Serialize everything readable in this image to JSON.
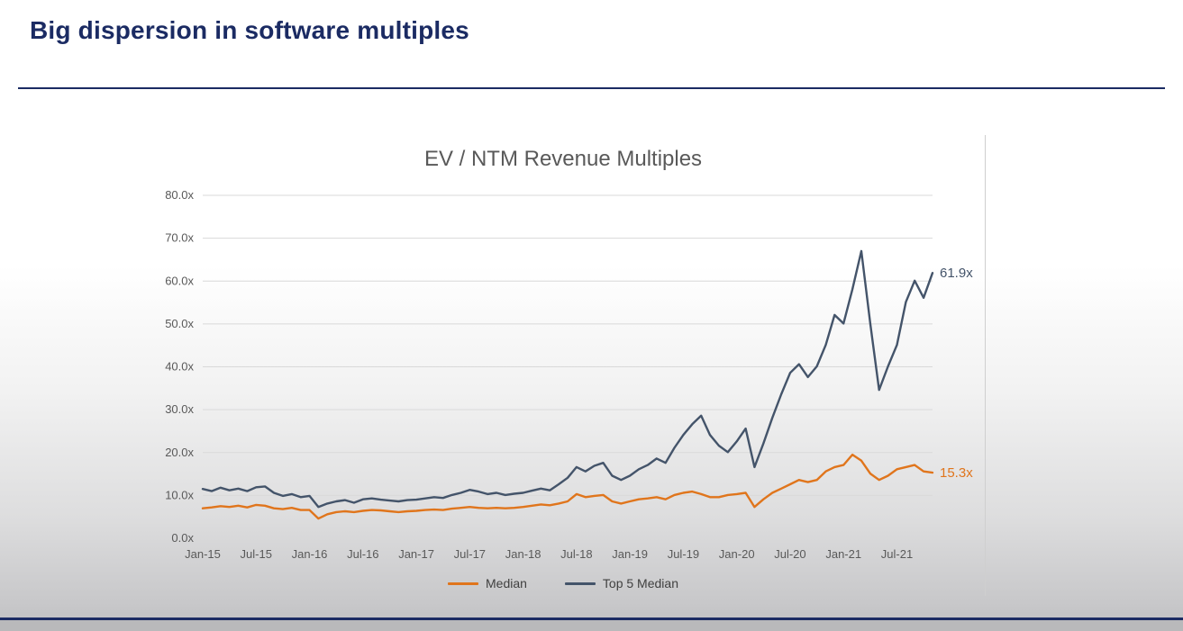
{
  "slide": {
    "title": "Big dispersion in software multiples"
  },
  "colors": {
    "accent": "#1B2B63",
    "chart_title_text": "#595959",
    "axis_text": "#595959",
    "gridline": "#D9D9D9"
  },
  "chart_data": {
    "type": "line",
    "title": "EV / NTM Revenue Multiples",
    "xlabel": "",
    "ylabel": "",
    "ylim": [
      0,
      80
    ],
    "grid": true,
    "legend_position": "bottom",
    "x_unit": "month",
    "x_start": "Jan-15",
    "y_ticks": [
      {
        "value": 0,
        "label": "0.0x"
      },
      {
        "value": 10,
        "label": "10.0x"
      },
      {
        "value": 20,
        "label": "20.0x"
      },
      {
        "value": 30,
        "label": "30.0x"
      },
      {
        "value": 40,
        "label": "40.0x"
      },
      {
        "value": 50,
        "label": "50.0x"
      },
      {
        "value": 60,
        "label": "60.0x"
      },
      {
        "value": 70,
        "label": "70.0x"
      },
      {
        "value": 80,
        "label": "80.0x"
      }
    ],
    "x_ticks": [
      {
        "index": 0,
        "label": "Jan-15"
      },
      {
        "index": 6,
        "label": "Jul-15"
      },
      {
        "index": 12,
        "label": "Jan-16"
      },
      {
        "index": 18,
        "label": "Jul-16"
      },
      {
        "index": 24,
        "label": "Jan-17"
      },
      {
        "index": 30,
        "label": "Jul-17"
      },
      {
        "index": 36,
        "label": "Jan-18"
      },
      {
        "index": 42,
        "label": "Jul-18"
      },
      {
        "index": 48,
        "label": "Jan-19"
      },
      {
        "index": 54,
        "label": "Jul-19"
      },
      {
        "index": 60,
        "label": "Jan-20"
      },
      {
        "index": 66,
        "label": "Jul-20"
      },
      {
        "index": 72,
        "label": "Jan-21"
      },
      {
        "index": 78,
        "label": "Jul-21"
      }
    ],
    "series": [
      {
        "name": "Median",
        "color": "#E0751C",
        "end_label": "15.3x",
        "values": [
          7.0,
          7.2,
          7.5,
          7.3,
          7.6,
          7.2,
          7.8,
          7.6,
          7.0,
          6.8,
          7.1,
          6.6,
          6.6,
          4.6,
          5.6,
          6.1,
          6.3,
          6.1,
          6.4,
          6.6,
          6.5,
          6.3,
          6.1,
          6.3,
          6.4,
          6.6,
          6.7,
          6.6,
          6.9,
          7.1,
          7.3,
          7.1,
          7.0,
          7.1,
          7.0,
          7.1,
          7.3,
          7.6,
          7.9,
          7.7,
          8.1,
          8.6,
          10.3,
          9.6,
          9.9,
          10.1,
          8.6,
          8.1,
          8.6,
          9.1,
          9.3,
          9.6,
          9.1,
          10.1,
          10.6,
          10.9,
          10.3,
          9.6,
          9.6,
          10.1,
          10.3,
          10.6,
          7.3,
          9.1,
          10.6,
          11.6,
          12.6,
          13.6,
          13.1,
          13.6,
          15.6,
          16.6,
          17.1,
          19.5,
          18.1,
          15.1,
          13.6,
          14.6,
          16.1,
          16.6,
          17.1,
          15.6,
          15.3
        ]
      },
      {
        "name": "Top 5 Median",
        "color": "#44546A",
        "end_label": "61.9x",
        "values": [
          11.5,
          11.0,
          11.8,
          11.2,
          11.6,
          11.0,
          11.9,
          12.1,
          10.6,
          9.9,
          10.3,
          9.6,
          9.9,
          7.3,
          8.1,
          8.6,
          8.9,
          8.3,
          9.1,
          9.3,
          9.0,
          8.8,
          8.6,
          8.9,
          9.0,
          9.3,
          9.6,
          9.4,
          10.1,
          10.6,
          11.3,
          10.9,
          10.3,
          10.6,
          10.1,
          10.4,
          10.6,
          11.1,
          11.6,
          11.2,
          12.6,
          14.1,
          16.6,
          15.6,
          16.9,
          17.6,
          14.6,
          13.6,
          14.6,
          16.1,
          17.1,
          18.6,
          17.6,
          21.1,
          24.1,
          26.6,
          28.6,
          24.1,
          21.6,
          20.1,
          22.6,
          25.6,
          16.6,
          22.1,
          28.1,
          33.6,
          38.6,
          40.6,
          37.6,
          40.1,
          45.1,
          52.1,
          50.1,
          58.1,
          67.0,
          50.1,
          34.6,
          40.1,
          45.1,
          55.1,
          60.1,
          56.1,
          61.9
        ]
      }
    ]
  }
}
